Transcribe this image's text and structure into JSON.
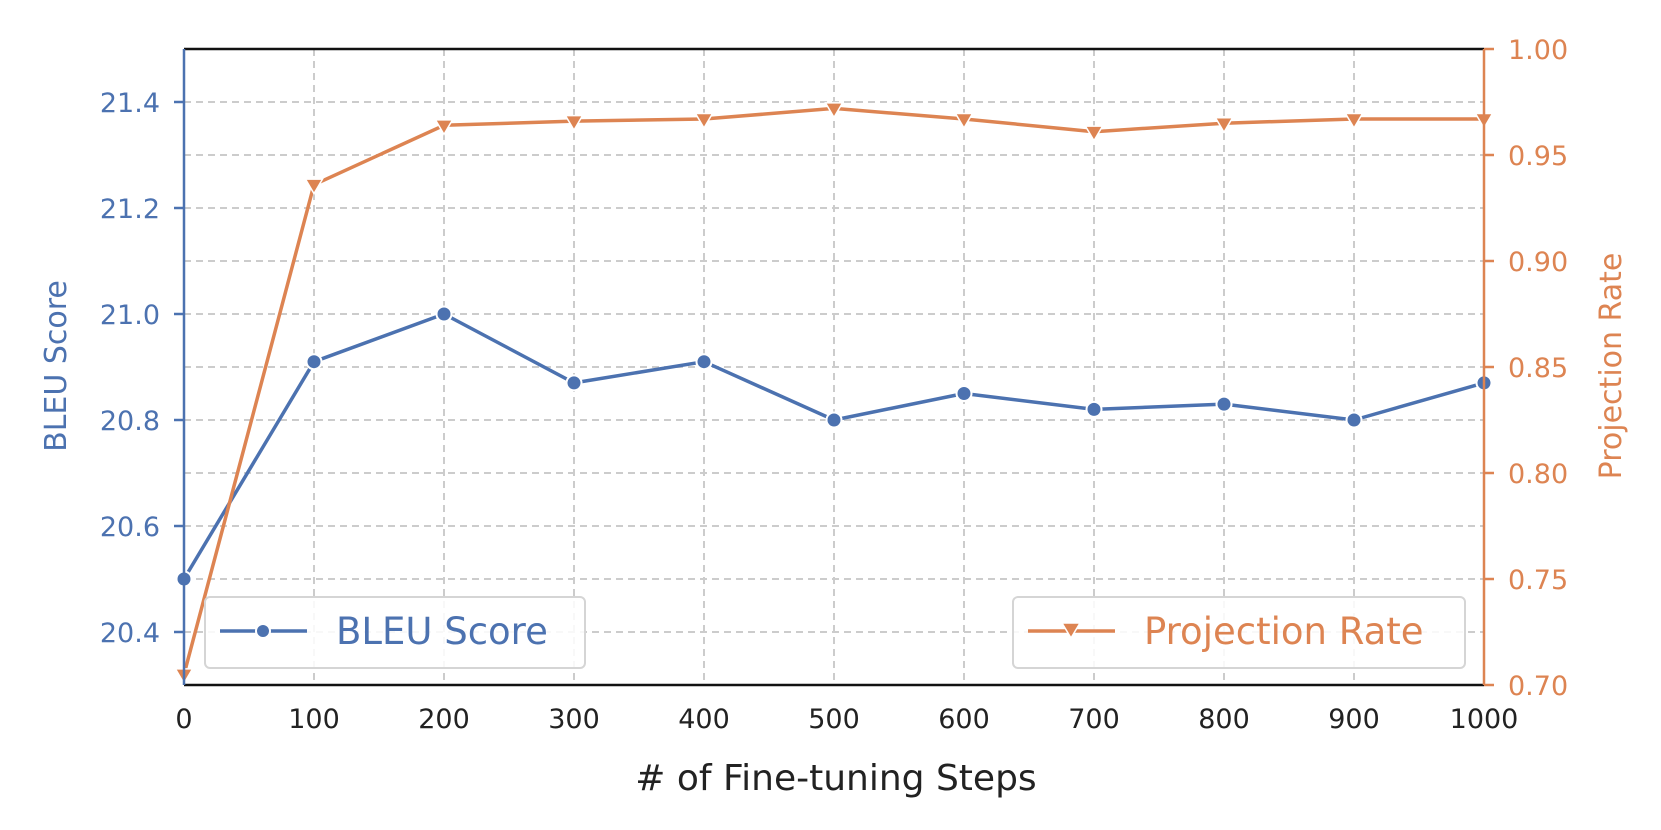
{
  "chart_data": {
    "type": "line",
    "x": [
      0,
      100,
      200,
      300,
      400,
      500,
      600,
      700,
      800,
      900,
      1000
    ],
    "xlabel": "# of Fine-tuning Steps",
    "xlim": [
      0,
      1000
    ],
    "xticks": [
      "0",
      "100",
      "200",
      "300",
      "400",
      "500",
      "600",
      "700",
      "800",
      "900",
      "1000"
    ],
    "grid": true,
    "series": [
      {
        "name": "BLEU Score",
        "axis": "left",
        "color": "#4c72b0",
        "marker": "circle",
        "values": [
          20.5,
          20.91,
          21.0,
          20.87,
          20.91,
          20.8,
          20.85,
          20.82,
          20.83,
          20.8,
          20.87
        ]
      },
      {
        "name": "Projection Rate",
        "axis": "right",
        "color": "#dd8452",
        "marker": "triangle-down",
        "values": [
          0.705,
          0.936,
          0.964,
          0.966,
          0.967,
          0.972,
          0.967,
          0.961,
          0.965,
          0.967,
          0.967
        ]
      }
    ],
    "y_left": {
      "label": "BLEU Score",
      "lim": [
        20.3,
        21.5
      ],
      "ticks": [
        "20.4",
        "20.6",
        "20.8",
        "21.0",
        "21.2",
        "21.4"
      ],
      "color": "#4c72b0"
    },
    "y_right": {
      "label": "Projection Rate",
      "lim": [
        0.7,
        1.0
      ],
      "ticks": [
        "0.70",
        "0.75",
        "0.80",
        "0.85",
        "0.90",
        "0.95",
        "1.00"
      ],
      "color": "#dd8452"
    },
    "legends": [
      {
        "label": "BLEU Score",
        "placement": "lower-left"
      },
      {
        "label": "Projection Rate",
        "placement": "lower-right"
      }
    ]
  }
}
